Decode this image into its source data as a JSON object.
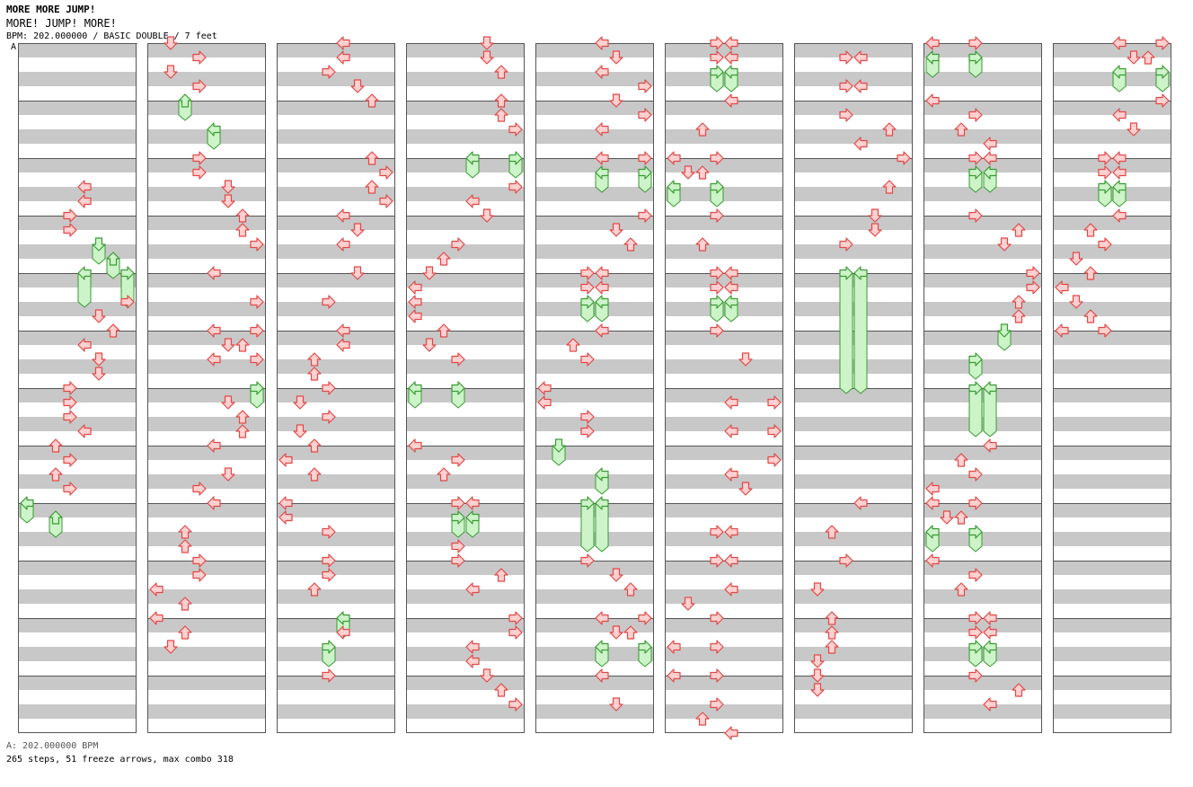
{
  "header": {
    "title": "MORE MORE JUMP!",
    "subtitle": "MORE! JUMP! MORE!",
    "meta": "BPM: 202.000000 / BASIC DOUBLE / 7 feet"
  },
  "marker": {
    "label": "A"
  },
  "footer": {
    "bpm_line": "A: 202.000000 BPM",
    "stats": "265 steps, 51 freeze arrows, max combo 318"
  },
  "colors": {
    "arrow_fill": "#ffd0d0",
    "arrow_stroke": "#e04848",
    "freeze_fill": "#ccf4c8",
    "freeze_stroke": "#3a9a34",
    "stripe": "#c8c8c8",
    "border": "#555555"
  },
  "chart_data": {
    "type": "stepchart",
    "columns_count": 9,
    "measures_per_column": 12,
    "lanes": 8,
    "directions": [
      "left",
      "down",
      "up",
      "right",
      "left",
      "down",
      "up",
      "right"
    ],
    "notes": [
      [
        0,
        20,
        4
      ],
      [
        0,
        22,
        4
      ],
      [
        0,
        24,
        3
      ],
      [
        0,
        26,
        3
      ],
      [
        0,
        28,
        5,
        2
      ],
      [
        0,
        30,
        6,
        2
      ],
      [
        0,
        32,
        4,
        4
      ],
      [
        0,
        32,
        7,
        4
      ],
      [
        0,
        36,
        7
      ],
      [
        0,
        38,
        5
      ],
      [
        0,
        40,
        6
      ],
      [
        0,
        42,
        4
      ],
      [
        0,
        44,
        5
      ],
      [
        0,
        46,
        5
      ],
      [
        0,
        48,
        3
      ],
      [
        0,
        50,
        3
      ],
      [
        0,
        52,
        3
      ],
      [
        0,
        54,
        4
      ],
      [
        0,
        56,
        2
      ],
      [
        0,
        58,
        3
      ],
      [
        0,
        60,
        2
      ],
      [
        0,
        62,
        3
      ],
      [
        0,
        64,
        0,
        2
      ],
      [
        0,
        66,
        2,
        2
      ],
      [
        1,
        0,
        1
      ],
      [
        1,
        2,
        3
      ],
      [
        1,
        4,
        1
      ],
      [
        1,
        6,
        3
      ],
      [
        1,
        8,
        2,
        2
      ],
      [
        1,
        12,
        4,
        2
      ],
      [
        1,
        16,
        3
      ],
      [
        1,
        18,
        3
      ],
      [
        1,
        20,
        5
      ],
      [
        1,
        22,
        5
      ],
      [
        1,
        24,
        6
      ],
      [
        1,
        26,
        6
      ],
      [
        1,
        28,
        7
      ],
      [
        1,
        32,
        4
      ],
      [
        1,
        36,
        7
      ],
      [
        1,
        40,
        4
      ],
      [
        1,
        40,
        7
      ],
      [
        1,
        42,
        5
      ],
      [
        1,
        42,
        6
      ],
      [
        1,
        44,
        4
      ],
      [
        1,
        44,
        7
      ],
      [
        1,
        48,
        7,
        2
      ],
      [
        1,
        50,
        5
      ],
      [
        1,
        52,
        6
      ],
      [
        1,
        54,
        6
      ],
      [
        1,
        56,
        4
      ],
      [
        1,
        60,
        5
      ],
      [
        1,
        62,
        3
      ],
      [
        1,
        64,
        4
      ],
      [
        1,
        68,
        2
      ],
      [
        1,
        70,
        2
      ],
      [
        1,
        72,
        3
      ],
      [
        1,
        74,
        3
      ],
      [
        1,
        76,
        0
      ],
      [
        1,
        78,
        2
      ],
      [
        1,
        80,
        0
      ],
      [
        1,
        82,
        2
      ],
      [
        1,
        84,
        1
      ],
      [
        2,
        0,
        4
      ],
      [
        2,
        2,
        4
      ],
      [
        2,
        4,
        3
      ],
      [
        2,
        6,
        5
      ],
      [
        2,
        8,
        6
      ],
      [
        2,
        16,
        6
      ],
      [
        2,
        18,
        7
      ],
      [
        2,
        20,
        6
      ],
      [
        2,
        22,
        7
      ],
      [
        2,
        24,
        4
      ],
      [
        2,
        26,
        5
      ],
      [
        2,
        28,
        4
      ],
      [
        2,
        32,
        5
      ],
      [
        2,
        36,
        3
      ],
      [
        2,
        40,
        4
      ],
      [
        2,
        42,
        4
      ],
      [
        2,
        44,
        2
      ],
      [
        2,
        46,
        2
      ],
      [
        2,
        48,
        3
      ],
      [
        2,
        50,
        1
      ],
      [
        2,
        52,
        3
      ],
      [
        2,
        54,
        1
      ],
      [
        2,
        56,
        2
      ],
      [
        2,
        58,
        0
      ],
      [
        2,
        60,
        2
      ],
      [
        2,
        64,
        0
      ],
      [
        2,
        66,
        0
      ],
      [
        2,
        68,
        3
      ],
      [
        2,
        72,
        3
      ],
      [
        2,
        74,
        3
      ],
      [
        2,
        76,
        2
      ],
      [
        2,
        80,
        4,
        2
      ],
      [
        2,
        82,
        4
      ],
      [
        2,
        84,
        3,
        2
      ],
      [
        2,
        88,
        3
      ],
      [
        3,
        0,
        5
      ],
      [
        3,
        2,
        5
      ],
      [
        3,
        4,
        6
      ],
      [
        3,
        8,
        6
      ],
      [
        3,
        10,
        6
      ],
      [
        3,
        12,
        7
      ],
      [
        3,
        16,
        4,
        2
      ],
      [
        3,
        16,
        7,
        2
      ],
      [
        3,
        20,
        7
      ],
      [
        3,
        22,
        4
      ],
      [
        3,
        24,
        5
      ],
      [
        3,
        28,
        3
      ],
      [
        3,
        30,
        2
      ],
      [
        3,
        32,
        1
      ],
      [
        3,
        34,
        0
      ],
      [
        3,
        36,
        0
      ],
      [
        3,
        38,
        0
      ],
      [
        3,
        40,
        2
      ],
      [
        3,
        42,
        1
      ],
      [
        3,
        44,
        3
      ],
      [
        3,
        48,
        0,
        2
      ],
      [
        3,
        48,
        3,
        2
      ],
      [
        3,
        56,
        0
      ],
      [
        3,
        58,
        3
      ],
      [
        3,
        60,
        2
      ],
      [
        3,
        64,
        3
      ],
      [
        3,
        64,
        4
      ],
      [
        3,
        66,
        3,
        2
      ],
      [
        3,
        66,
        4,
        2
      ],
      [
        3,
        70,
        3
      ],
      [
        3,
        72,
        3
      ],
      [
        3,
        74,
        6
      ],
      [
        3,
        76,
        4
      ],
      [
        3,
        80,
        7
      ],
      [
        3,
        82,
        7
      ],
      [
        3,
        84,
        4
      ],
      [
        3,
        86,
        4
      ],
      [
        3,
        88,
        5
      ],
      [
        3,
        90,
        6
      ],
      [
        3,
        92,
        7
      ],
      [
        4,
        0,
        4
      ],
      [
        4,
        2,
        5
      ],
      [
        4,
        4,
        4
      ],
      [
        4,
        6,
        7
      ],
      [
        4,
        8,
        5
      ],
      [
        4,
        10,
        7
      ],
      [
        4,
        12,
        4
      ],
      [
        4,
        16,
        4
      ],
      [
        4,
        16,
        7
      ],
      [
        4,
        18,
        4,
        2
      ],
      [
        4,
        18,
        7,
        2
      ],
      [
        4,
        24,
        7
      ],
      [
        4,
        26,
        5
      ],
      [
        4,
        28,
        6
      ],
      [
        4,
        32,
        3
      ],
      [
        4,
        32,
        4
      ],
      [
        4,
        34,
        3
      ],
      [
        4,
        34,
        4
      ],
      [
        4,
        36,
        3,
        2
      ],
      [
        4,
        36,
        4,
        2
      ],
      [
        4,
        40,
        4
      ],
      [
        4,
        42,
        2
      ],
      [
        4,
        44,
        3
      ],
      [
        4,
        48,
        0
      ],
      [
        4,
        50,
        0
      ],
      [
        4,
        52,
        3
      ],
      [
        4,
        54,
        3
      ],
      [
        4,
        56,
        1,
        2
      ],
      [
        4,
        60,
        4,
        2
      ],
      [
        4,
        64,
        3,
        6
      ],
      [
        4,
        64,
        4,
        6
      ],
      [
        4,
        72,
        3
      ],
      [
        4,
        74,
        5
      ],
      [
        4,
        76,
        6
      ],
      [
        4,
        80,
        4
      ],
      [
        4,
        80,
        7
      ],
      [
        4,
        82,
        5
      ],
      [
        4,
        82,
        6
      ],
      [
        4,
        84,
        4,
        2
      ],
      [
        4,
        84,
        7,
        2
      ],
      [
        4,
        88,
        4
      ],
      [
        4,
        92,
        5
      ],
      [
        5,
        0,
        3
      ],
      [
        5,
        0,
        4
      ],
      [
        5,
        2,
        3
      ],
      [
        5,
        2,
        4
      ],
      [
        5,
        4,
        3,
        2
      ],
      [
        5,
        4,
        4,
        2
      ],
      [
        5,
        8,
        4
      ],
      [
        5,
        12,
        2
      ],
      [
        5,
        16,
        0
      ],
      [
        5,
        16,
        3
      ],
      [
        5,
        18,
        1
      ],
      [
        5,
        18,
        2
      ],
      [
        5,
        20,
        0,
        2
      ],
      [
        5,
        20,
        3,
        2
      ],
      [
        5,
        24,
        3
      ],
      [
        5,
        28,
        2
      ],
      [
        5,
        32,
        3
      ],
      [
        5,
        32,
        4
      ],
      [
        5,
        34,
        3
      ],
      [
        5,
        34,
        4
      ],
      [
        5,
        36,
        3,
        2
      ],
      [
        5,
        36,
        4,
        2
      ],
      [
        5,
        40,
        3
      ],
      [
        5,
        44,
        5
      ],
      [
        5,
        50,
        4
      ],
      [
        5,
        50,
        7
      ],
      [
        5,
        54,
        4
      ],
      [
        5,
        54,
        7
      ],
      [
        5,
        58,
        7
      ],
      [
        5,
        60,
        4
      ],
      [
        5,
        62,
        5
      ],
      [
        5,
        68,
        3
      ],
      [
        5,
        68,
        4
      ],
      [
        5,
        72,
        3
      ],
      [
        5,
        72,
        4
      ],
      [
        5,
        76,
        4
      ],
      [
        5,
        78,
        1
      ],
      [
        5,
        80,
        3
      ],
      [
        5,
        84,
        0
      ],
      [
        5,
        84,
        3
      ],
      [
        5,
        88,
        0
      ],
      [
        5,
        88,
        3
      ],
      [
        5,
        92,
        3
      ],
      [
        5,
        94,
        2
      ],
      [
        5,
        96,
        4
      ],
      [
        6,
        2,
        3
      ],
      [
        6,
        2,
        4
      ],
      [
        6,
        6,
        3
      ],
      [
        6,
        6,
        4
      ],
      [
        6,
        10,
        3
      ],
      [
        6,
        12,
        6
      ],
      [
        6,
        14,
        4
      ],
      [
        6,
        16,
        7
      ],
      [
        6,
        20,
        6
      ],
      [
        6,
        24,
        5
      ],
      [
        6,
        26,
        5
      ],
      [
        6,
        28,
        3
      ],
      [
        6,
        32,
        3,
        16
      ],
      [
        6,
        32,
        4,
        16
      ],
      [
        6,
        64,
        4
      ],
      [
        6,
        68,
        2
      ],
      [
        6,
        72,
        3
      ],
      [
        6,
        76,
        1
      ],
      [
        6,
        80,
        2
      ],
      [
        6,
        82,
        2
      ],
      [
        6,
        84,
        2
      ],
      [
        6,
        86,
        1
      ],
      [
        6,
        88,
        1
      ],
      [
        6,
        90,
        1
      ],
      [
        7,
        0,
        0
      ],
      [
        7,
        0,
        3
      ],
      [
        7,
        2,
        0,
        2
      ],
      [
        7,
        2,
        3,
        2
      ],
      [
        7,
        8,
        0
      ],
      [
        7,
        10,
        3
      ],
      [
        7,
        12,
        2
      ],
      [
        7,
        14,
        4
      ],
      [
        7,
        16,
        3
      ],
      [
        7,
        16,
        4
      ],
      [
        7,
        18,
        3,
        2
      ],
      [
        7,
        18,
        4,
        2
      ],
      [
        7,
        24,
        3
      ],
      [
        7,
        26,
        6
      ],
      [
        7,
        28,
        5
      ],
      [
        7,
        32,
        7
      ],
      [
        7,
        34,
        7
      ],
      [
        7,
        36,
        6
      ],
      [
        7,
        38,
        6
      ],
      [
        7,
        40,
        5,
        2
      ],
      [
        7,
        44,
        3,
        2
      ],
      [
        7,
        48,
        3,
        6
      ],
      [
        7,
        48,
        4,
        6
      ],
      [
        7,
        56,
        4
      ],
      [
        7,
        58,
        2
      ],
      [
        7,
        60,
        3
      ],
      [
        7,
        62,
        0
      ],
      [
        7,
        64,
        0
      ],
      [
        7,
        64,
        3
      ],
      [
        7,
        66,
        1
      ],
      [
        7,
        66,
        2
      ],
      [
        7,
        68,
        0,
        2
      ],
      [
        7,
        68,
        3,
        2
      ],
      [
        7,
        72,
        0
      ],
      [
        7,
        74,
        3
      ],
      [
        7,
        76,
        2
      ],
      [
        7,
        80,
        3
      ],
      [
        7,
        80,
        4
      ],
      [
        7,
        82,
        3
      ],
      [
        7,
        82,
        4
      ],
      [
        7,
        84,
        3,
        2
      ],
      [
        7,
        84,
        4,
        2
      ],
      [
        7,
        88,
        3
      ],
      [
        7,
        90,
        6
      ],
      [
        7,
        92,
        4
      ],
      [
        8,
        0,
        4
      ],
      [
        8,
        0,
        7
      ],
      [
        8,
        2,
        5
      ],
      [
        8,
        2,
        6
      ],
      [
        8,
        4,
        4,
        2
      ],
      [
        8,
        4,
        7,
        2
      ],
      [
        8,
        8,
        7
      ],
      [
        8,
        10,
        4
      ],
      [
        8,
        12,
        5
      ],
      [
        8,
        16,
        3
      ],
      [
        8,
        16,
        4
      ],
      [
        8,
        18,
        3
      ],
      [
        8,
        18,
        4
      ],
      [
        8,
        20,
        3,
        2
      ],
      [
        8,
        20,
        4,
        2
      ],
      [
        8,
        24,
        4
      ],
      [
        8,
        26,
        2
      ],
      [
        8,
        28,
        3
      ],
      [
        8,
        30,
        1
      ],
      [
        8,
        32,
        2
      ],
      [
        8,
        34,
        0
      ],
      [
        8,
        36,
        1
      ],
      [
        8,
        38,
        2
      ],
      [
        8,
        40,
        0
      ],
      [
        8,
        40,
        3
      ]
    ]
  }
}
